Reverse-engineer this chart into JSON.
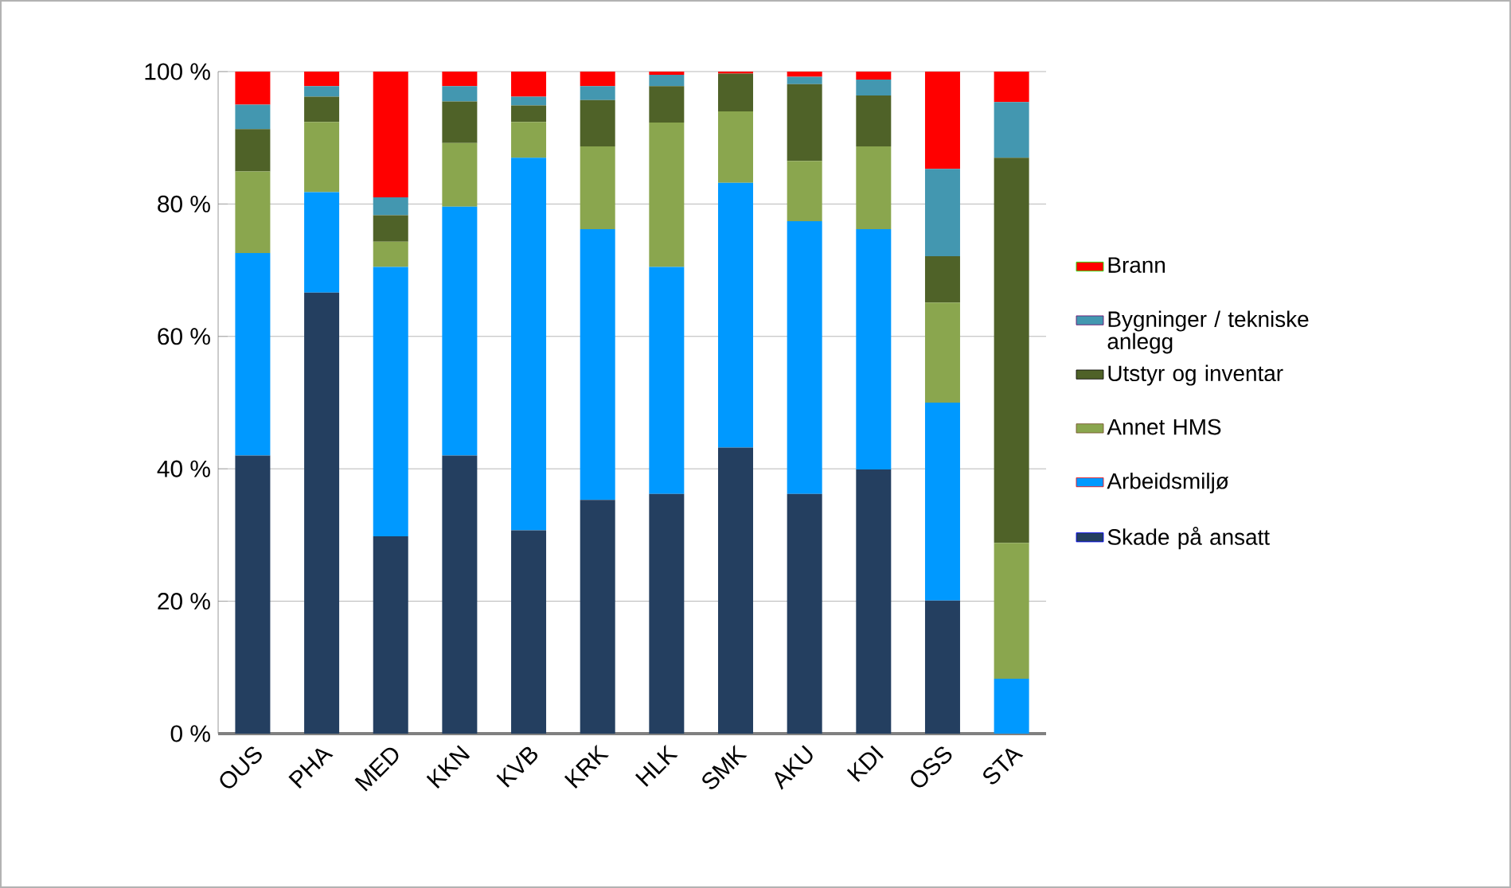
{
  "chart_data": {
    "type": "bar",
    "stacked": true,
    "categories": [
      "OUS",
      "PHA",
      "MED",
      "KKN",
      "KVB",
      "KRK",
      "HLK",
      "SMK",
      "AKU",
      "KDI",
      "OSS",
      "STA"
    ],
    "series": [
      {
        "name": "Skade på ansatt",
        "color": "#243f60",
        "values": [
          42.0,
          66.6,
          29.8,
          42.0,
          30.7,
          35.3,
          36.2,
          43.2,
          36.2,
          39.9,
          20.1,
          0
        ]
      },
      {
        "name": "Arbeidsmiljø",
        "color": "#0099ff",
        "values": [
          30.6,
          15.2,
          40.7,
          37.6,
          56.3,
          40.9,
          34.3,
          40.0,
          41.2,
          36.3,
          29.9,
          8.3
        ]
      },
      {
        "name": "Annet HMS",
        "color": "#8aa64e",
        "values": [
          12.3,
          10.6,
          3.8,
          9.6,
          5.4,
          12.5,
          21.8,
          10.8,
          9.1,
          12.5,
          15.1,
          20.5
        ]
      },
      {
        "name": "Utstyr og inventar",
        "color": "#4f6228",
        "values": [
          6.4,
          3.8,
          4.0,
          6.3,
          2.5,
          7.0,
          5.5,
          5.7,
          11.6,
          7.7,
          7.0,
          58.2
        ]
      },
      {
        "name": "Bygninger / tekniske anlegg",
        "color": "#4397b0",
        "values": [
          3.7,
          1.6,
          2.7,
          2.3,
          1.3,
          2.1,
          1.7,
          0,
          1.1,
          2.4,
          13.2,
          8.4
        ]
      },
      {
        "name": "Brann",
        "color": "#ff0000",
        "values": [
          5.0,
          2.2,
          19.0,
          2.2,
          3.8,
          2.2,
          0.5,
          0.3,
          0.8,
          1.2,
          14.7,
          4.6
        ]
      }
    ],
    "ylim": [
      0,
      100
    ],
    "yticks": [
      {
        "value": 0,
        "label": "0 %"
      },
      {
        "value": 20,
        "label": "20 %"
      },
      {
        "value": 40,
        "label": "40 %"
      },
      {
        "value": 60,
        "label": "60 %"
      },
      {
        "value": 80,
        "label": "80 %"
      },
      {
        "value": 100,
        "label": "100 %"
      }
    ],
    "grid": "y",
    "legend": "right"
  }
}
